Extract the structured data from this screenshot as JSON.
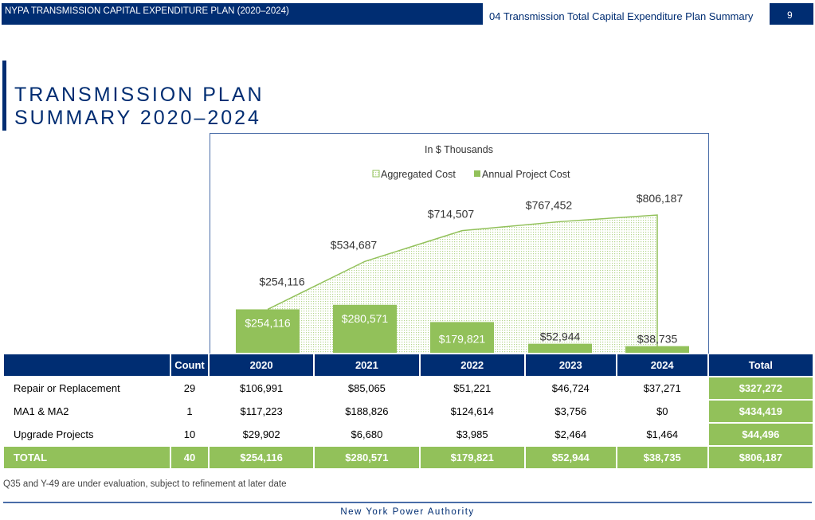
{
  "header": {
    "doc_title": "NYPA TRANSMISSION CAPITAL EXPENDITURE PLAN (2020–2024)",
    "section": "04 Transmission Total Capital Expenditure Plan Summary",
    "page": "9"
  },
  "title_line1": "TRANSMISSION PLAN",
  "title_line2": "SUMMARY 2020–2024",
  "chart_data": {
    "type": "bar+area",
    "subtitle": "In $ Thousands",
    "legend_position": "top",
    "categories": [
      "2020",
      "2021",
      "2022",
      "2023",
      "2024"
    ],
    "series": [
      {
        "name": "Aggregated Cost",
        "type": "area",
        "values": [
          254116,
          534687,
          714507,
          767452,
          806187
        ],
        "labels": [
          "$254,116",
          "$534,687",
          "$714,507",
          "$767,452",
          "$806,187"
        ],
        "color": "#92c15a"
      },
      {
        "name": "Annual Project Cost",
        "type": "bar",
        "values": [
          254116,
          280571,
          179821,
          52944,
          38735
        ],
        "labels": [
          "$254,116",
          "$280,571",
          "$179,821",
          "$52,944",
          "$38,735"
        ],
        "color": "#92c15a"
      }
    ]
  },
  "table": {
    "headers": [
      "",
      "Count",
      "2020",
      "2021",
      "2022",
      "2023",
      "2024",
      "Total"
    ],
    "rows": [
      [
        "Repair or Replacement",
        "29",
        "$106,991",
        "$85,065",
        "$51,221",
        "$46,724",
        "$37,271",
        "$327,272"
      ],
      [
        "MA1 & MA2",
        "1",
        "$117,223",
        "$188,826",
        "$124,614",
        "$3,756",
        "$0",
        "$434,419"
      ],
      [
        "Upgrade Projects",
        "10",
        "$29,902",
        "$6,680",
        "$3,985",
        "$2,464",
        "$1,464",
        "$44,496"
      ]
    ],
    "total": [
      "TOTAL",
      "40",
      "$254,116",
      "$280,571",
      "$179,821",
      "$52,944",
      "$38,735",
      "$806,187"
    ]
  },
  "note": "Q35 and Y-49 are under evaluation, subject to refinement at later date",
  "footer": "New York Power Authority"
}
